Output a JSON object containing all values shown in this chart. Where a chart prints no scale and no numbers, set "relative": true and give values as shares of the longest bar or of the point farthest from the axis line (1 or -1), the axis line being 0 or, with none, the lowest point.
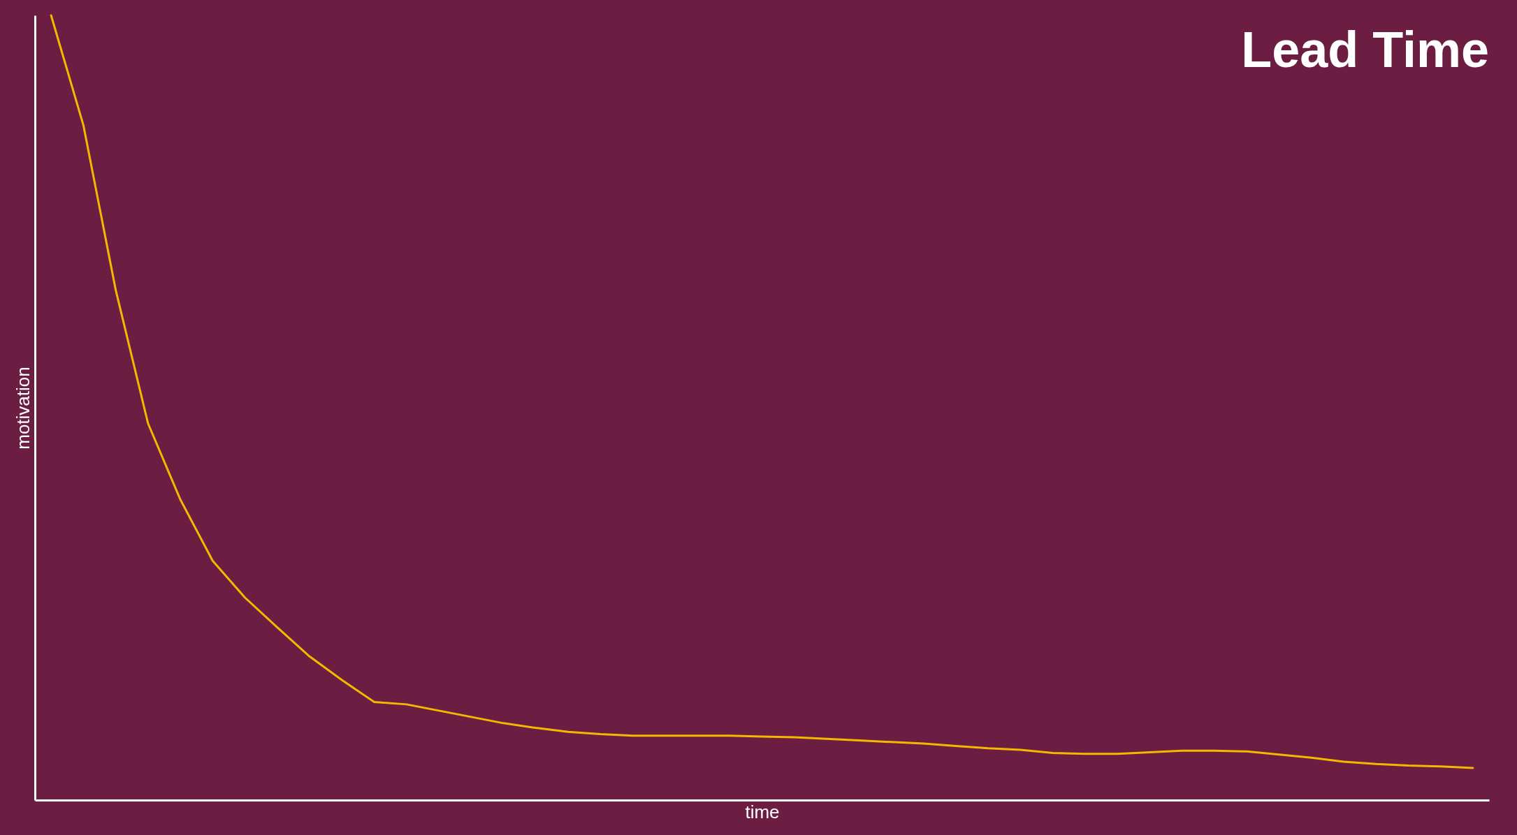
{
  "chart_data": {
    "type": "line",
    "title": "Lead Time",
    "xlabel": "time",
    "ylabel": "motivation",
    "relative": true,
    "categories": [
      null,
      null,
      null,
      null,
      null,
      null,
      null,
      null,
      null,
      null,
      null,
      null,
      null,
      null,
      null,
      null,
      null,
      null,
      null,
      null,
      null,
      null,
      null,
      null,
      null,
      null,
      null,
      null,
      null,
      null,
      null,
      null,
      null,
      null,
      null,
      null,
      null,
      null,
      null,
      null,
      null,
      null,
      null,
      null,
      null
    ],
    "series": [
      {
        "color": "#f5b800",
        "values": [
          1.0,
          0.86,
          0.65,
          0.48,
          0.383,
          0.305,
          0.258,
          0.22,
          0.183,
          0.153,
          0.125,
          0.122,
          0.114,
          0.106,
          0.098,
          0.092,
          0.087,
          0.084,
          0.082,
          0.082,
          0.082,
          0.082,
          0.081,
          0.08,
          0.078,
          0.076,
          0.074,
          0.072,
          0.069,
          0.066,
          0.064,
          0.06,
          0.059,
          0.059,
          0.061,
          0.063,
          0.063,
          0.062,
          0.058,
          0.054,
          0.049,
          0.046,
          0.044,
          0.043,
          0.041
        ]
      }
    ],
    "grid": false,
    "marker": "none",
    "line_style": "solid"
  }
}
